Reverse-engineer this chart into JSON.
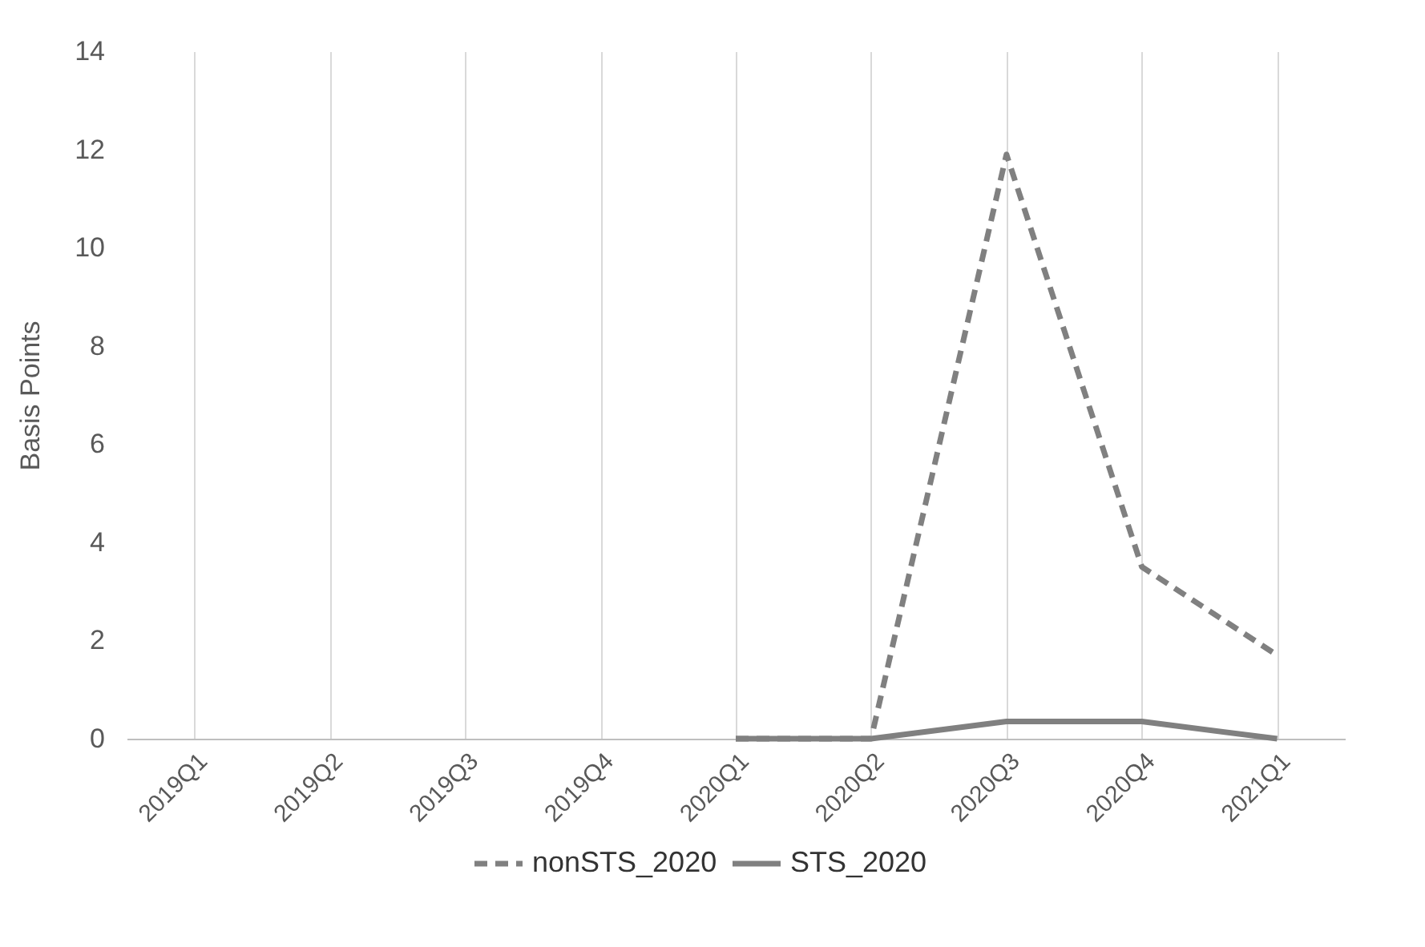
{
  "chart_data": {
    "type": "line",
    "ylabel": "Basis Points",
    "categories": [
      "2019Q1",
      "2019Q2",
      "2019Q3",
      "2019Q4",
      "2020Q1",
      "2020Q2",
      "2020Q3",
      "2020Q4",
      "2021Q1"
    ],
    "series": [
      {
        "name": "nonSTS_2020",
        "color": "#808080",
        "line_style": "dashed",
        "values": [
          null,
          null,
          null,
          null,
          0,
          0,
          11.9,
          3.5,
          1.7
        ]
      },
      {
        "name": "STS_2020",
        "color": "#808080",
        "line_style": "solid",
        "values": [
          null,
          null,
          null,
          null,
          0,
          0,
          0.35,
          0.35,
          0
        ]
      }
    ],
    "ylim": [
      0,
      14
    ],
    "yticks": [
      0,
      2,
      4,
      6,
      8,
      10,
      12,
      14
    ],
    "grid": "x",
    "legend": "bottom",
    "marker": "none"
  }
}
